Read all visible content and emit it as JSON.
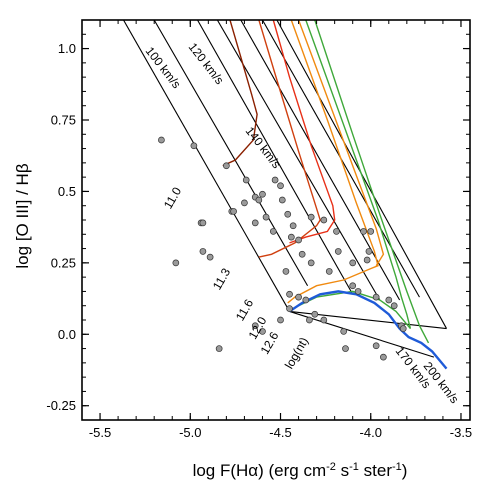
{
  "chart_data": {
    "type": "scatter",
    "xlabel_html": "log F(H&#945;) (erg cm<tspan baseline-shift='super' font-size='11'>-2</tspan> s<tspan baseline-shift='super' font-size='11'>-1</tspan> ster<tspan baseline-shift='super' font-size='11'>-1</tspan>)",
    "xlabel": "log F(Hα) (erg cm-2 s-1 ster-1)",
    "ylabel": "log [O III] / Hβ",
    "xlim": [
      -5.6,
      -3.45
    ],
    "ylim": [
      -0.3,
      1.1
    ],
    "xticks": [
      -5.5,
      -5.0,
      -4.5,
      -4.0,
      -3.5
    ],
    "xtick_labels": [
      "-5.5",
      "-5.0",
      "-4.5",
      "-4.0",
      "-3.5"
    ],
    "yticks": [
      -0.25,
      0.0,
      0.25,
      0.5,
      0.75,
      1.0
    ],
    "ytick_labels": [
      "-0.25",
      "0.0",
      "0.25",
      "0.5",
      "0.75",
      "1.0"
    ],
    "grid": false,
    "points": [
      [
        -5.16,
        0.68
      ],
      [
        -4.98,
        0.66
      ],
      [
        -5.08,
        0.25
      ],
      [
        -4.94,
        0.39
      ],
      [
        -4.93,
        0.39
      ],
      [
        -4.93,
        0.29
      ],
      [
        -4.89,
        0.27
      ],
      [
        -4.8,
        0.59
      ],
      [
        -4.77,
        0.43
      ],
      [
        -4.76,
        0.43
      ],
      [
        -4.69,
        0.54
      ],
      [
        -4.7,
        0.46
      ],
      [
        -4.64,
        0.48
      ],
      [
        -4.6,
        0.49
      ],
      [
        -4.62,
        0.47
      ],
      [
        -4.58,
        0.41
      ],
      [
        -4.64,
        0.39
      ],
      [
        -4.53,
        0.54
      ],
      [
        -4.5,
        0.52
      ],
      [
        -4.49,
        0.47
      ],
      [
        -4.46,
        0.42
      ],
      [
        -4.43,
        0.38
      ],
      [
        -4.54,
        0.36
      ],
      [
        -4.44,
        0.34
      ],
      [
        -4.4,
        0.33
      ],
      [
        -4.38,
        0.28
      ],
      [
        -4.33,
        0.25
      ],
      [
        -4.47,
        0.22
      ],
      [
        -4.45,
        0.14
      ],
      [
        -4.4,
        0.13
      ],
      [
        -4.36,
        0.12
      ],
      [
        -4.31,
        0.07
      ],
      [
        -4.34,
        0.05
      ],
      [
        -4.26,
        0.05
      ],
      [
        -4.15,
        0.01
      ],
      [
        -4.33,
        0.41
      ],
      [
        -4.26,
        0.4
      ],
      [
        -4.19,
        0.36
      ],
      [
        -4.18,
        0.29
      ],
      [
        -4.23,
        0.22
      ],
      [
        -4.1,
        0.25
      ],
      [
        -4.1,
        0.17
      ],
      [
        -4.07,
        0.15
      ],
      [
        -4.04,
        0.36
      ],
      [
        -4.0,
        0.36
      ],
      [
        -4.01,
        0.29
      ],
      [
        -4.02,
        0.26
      ],
      [
        -3.97,
        0.13
      ],
      [
        -3.9,
        0.12
      ],
      [
        -3.87,
        0.1
      ],
      [
        -3.83,
        0.03
      ],
      [
        -3.82,
        0.02
      ],
      [
        -3.97,
        -0.04
      ],
      [
        -3.93,
        -0.08
      ],
      [
        -4.45,
        0.09
      ],
      [
        -4.84,
        -0.05
      ],
      [
        -4.64,
        0.03
      ],
      [
        -4.6,
        0.01
      ],
      [
        -4.14,
        -0.05
      ],
      [
        -4.5,
        0.05
      ]
    ],
    "shock_velocity_labels": [
      "100 km/s",
      "120 km/s",
      "140 km/s",
      "170 km/s",
      "200 km/s"
    ],
    "log_nt_labels": [
      "11.0",
      "11.3",
      "11.6",
      "12.0",
      "12.6",
      "log(nt)"
    ],
    "grid_lines": [
      [
        [
          -5.37,
          1.1
        ],
        [
          -4.45,
          0.08
        ]
      ],
      [
        [
          -5.2,
          1.1
        ],
        [
          -4.35,
          0.17
        ]
      ],
      [
        [
          -4.96,
          1.1
        ],
        [
          -4.1,
          0.14
        ]
      ],
      [
        [
          -4.85,
          1.1
        ],
        [
          -3.95,
          0.12
        ]
      ],
      [
        [
          -4.72,
          1.1
        ],
        [
          -3.84,
          0.12
        ]
      ],
      [
        [
          -4.6,
          1.1
        ],
        [
          -3.73,
          0.13
        ]
      ],
      [
        [
          -4.52,
          1.1
        ],
        [
          -3.58,
          0.02
        ]
      ],
      [
        [
          -4.45,
          0.08
        ],
        [
          -3.58,
          0.02
        ]
      ],
      [
        [
          -4.45,
          0.08
        ],
        [
          -3.65,
          -0.08
        ]
      ]
    ],
    "model_curves": [
      {
        "color": "#8b2000",
        "points": [
          [
            -4.78,
            1.1
          ],
          [
            -4.72,
            0.97
          ],
          [
            -4.66,
            0.84
          ],
          [
            -4.63,
            0.77
          ],
          [
            -4.65,
            0.68
          ],
          [
            -4.75,
            0.61
          ],
          [
            -4.82,
            0.59
          ]
        ]
      },
      {
        "color": "#d04010",
        "points": [
          [
            -4.62,
            1.1
          ],
          [
            -4.52,
            0.89
          ],
          [
            -4.4,
            0.64
          ],
          [
            -4.33,
            0.5
          ],
          [
            -4.3,
            0.44
          ],
          [
            -4.28,
            0.4
          ],
          [
            -4.3,
            0.38
          ],
          [
            -4.42,
            0.32
          ],
          [
            -4.55,
            0.28
          ],
          [
            -4.62,
            0.27
          ]
        ]
      },
      {
        "color": "#e83018",
        "points": [
          [
            -4.54,
            1.1
          ],
          [
            -4.45,
            0.9
          ],
          [
            -4.33,
            0.66
          ],
          [
            -4.25,
            0.52
          ],
          [
            -4.21,
            0.45
          ],
          [
            -4.2,
            0.4
          ],
          [
            -4.24,
            0.36
          ],
          [
            -4.36,
            0.34
          ],
          [
            -4.45,
            0.32
          ]
        ]
      },
      {
        "color": "#f08a10",
        "points": [
          [
            -4.44,
            1.1
          ],
          [
            -4.24,
            0.75
          ],
          [
            -4.08,
            0.46
          ],
          [
            -3.98,
            0.29
          ],
          [
            -3.96,
            0.24
          ],
          [
            -4.0,
            0.23
          ],
          [
            -4.15,
            0.19
          ],
          [
            -4.3,
            0.17
          ],
          [
            -4.42,
            0.13
          ],
          [
            -4.46,
            0.11
          ]
        ]
      },
      {
        "color": "#f08a10",
        "points": [
          [
            -4.4,
            1.1
          ],
          [
            -4.1,
            0.59
          ],
          [
            -3.97,
            0.37
          ],
          [
            -3.93,
            0.28
          ],
          [
            -3.97,
            0.24
          ]
        ]
      },
      {
        "color": "#3fa83a",
        "points": [
          [
            -4.36,
            1.1
          ],
          [
            -4.12,
            0.68
          ],
          [
            -3.96,
            0.4
          ],
          [
            -3.86,
            0.2
          ],
          [
            -3.83,
            0.13
          ],
          [
            -3.8,
            0.07
          ],
          [
            -3.78,
            0.02
          ],
          [
            -3.86,
            0.08
          ],
          [
            -3.95,
            0.12
          ],
          [
            -4.1,
            0.15
          ],
          [
            -4.3,
            0.13
          ],
          [
            -4.4,
            0.1
          ],
          [
            -4.45,
            0.08
          ]
        ]
      },
      {
        "color": "#3fa83a",
        "points": [
          [
            -4.31,
            1.1
          ],
          [
            -4.1,
            0.7
          ],
          [
            -3.95,
            0.42
          ],
          [
            -3.8,
            0.15
          ],
          [
            -3.73,
            0.03
          ],
          [
            -3.68,
            -0.03
          ]
        ]
      },
      {
        "color": "#1f5bd8",
        "width": 2.4,
        "points": [
          [
            -4.45,
            0.08
          ],
          [
            -4.38,
            0.11
          ],
          [
            -4.28,
            0.14
          ],
          [
            -4.18,
            0.15
          ],
          [
            -4.08,
            0.14
          ],
          [
            -3.98,
            0.11
          ],
          [
            -3.9,
            0.07
          ],
          [
            -3.84,
            0.02
          ],
          [
            -3.79,
            -0.01
          ],
          [
            -3.72,
            -0.03
          ],
          [
            -3.66,
            -0.06
          ],
          [
            -3.58,
            -0.12
          ]
        ]
      }
    ]
  }
}
